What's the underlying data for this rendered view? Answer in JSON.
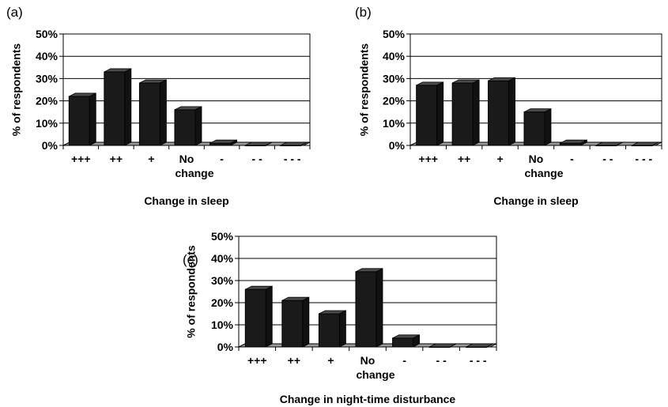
{
  "chart_data": [
    {
      "type": "bar",
      "panel": "(a)",
      "categories": [
        "+++",
        "++",
        "+",
        "No change",
        "-",
        "- -",
        "- - -"
      ],
      "values": [
        22,
        33,
        28,
        16,
        1,
        0,
        0
      ],
      "xlabel": "Change in sleep",
      "ylabel": "% of respondents",
      "ylim": [
        0,
        50
      ],
      "yticks": [
        "0%",
        "10%",
        "20%",
        "30%",
        "40%",
        "50%"
      ],
      "grid": true,
      "bar_color": "#1a1a1a"
    },
    {
      "type": "bar",
      "panel": "(b)",
      "categories": [
        "+++",
        "++",
        "+",
        "No change",
        "-",
        "- -",
        "- - -"
      ],
      "values": [
        27,
        28,
        29,
        15,
        1,
        0,
        0
      ],
      "xlabel": "Change in sleep",
      "ylabel": "% of respondents",
      "ylim": [
        0,
        50
      ],
      "yticks": [
        "0%",
        "10%",
        "20%",
        "30%",
        "40%",
        "50%"
      ],
      "grid": true,
      "bar_color": "#1a1a1a"
    },
    {
      "type": "bar",
      "panel": "(c)",
      "categories": [
        "+++",
        "++",
        "+",
        "No change",
        "-",
        "- -",
        "- - -"
      ],
      "values": [
        26,
        21,
        15,
        34,
        4,
        0,
        0
      ],
      "xlabel": "Change in night-time disturbance",
      "ylabel": "% of respondents",
      "ylim": [
        0,
        50
      ],
      "yticks": [
        "0%",
        "10%",
        "20%",
        "30%",
        "40%",
        "50%"
      ],
      "grid": true,
      "bar_color": "#1a1a1a"
    }
  ]
}
